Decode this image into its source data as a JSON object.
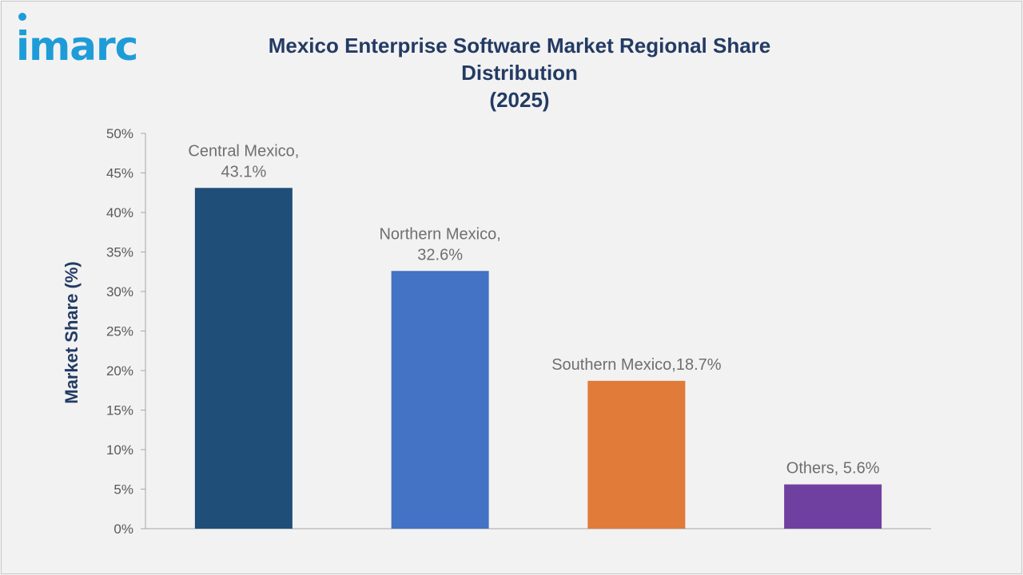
{
  "brand": {
    "logo_text": "imarc",
    "logo_color": "#1e9cd7"
  },
  "chart_title_line1": "Mexico Enterprise Software Market Regional Share Distribution",
  "chart_title_line2": "(2025)",
  "colors": {
    "title": "#233b64",
    "axis_label": "#233b64",
    "tick_text": "#595959",
    "data_label": "#6f6f6f",
    "axis_line": "#a6a6a6"
  },
  "chart_data": {
    "type": "bar",
    "title": "Mexico Enterprise Software Market Regional Share Distribution (2025)",
    "xlabel": "",
    "ylabel": "Market Share (%)",
    "ylim": [
      0,
      50
    ],
    "ytick_step": 5,
    "ytick_labels": [
      "0%",
      "5%",
      "10%",
      "15%",
      "20%",
      "25%",
      "30%",
      "35%",
      "40%",
      "45%",
      "50%"
    ],
    "grid": false,
    "legend": "none",
    "categories": [
      "Central Mexico",
      "Northern Mexico",
      "Southern Mexico",
      "Others"
    ],
    "values": [
      43.1,
      32.6,
      18.7,
      5.6
    ],
    "bar_colors": [
      "#1f4e79",
      "#4472c4",
      "#e07b39",
      "#7040a0"
    ],
    "data_labels": [
      [
        "Central Mexico,",
        "43.1%"
      ],
      [
        "Northern Mexico,",
        "32.6%"
      ],
      [
        "Southern Mexico,18.7%"
      ],
      [
        "Others, 5.6%"
      ]
    ]
  }
}
